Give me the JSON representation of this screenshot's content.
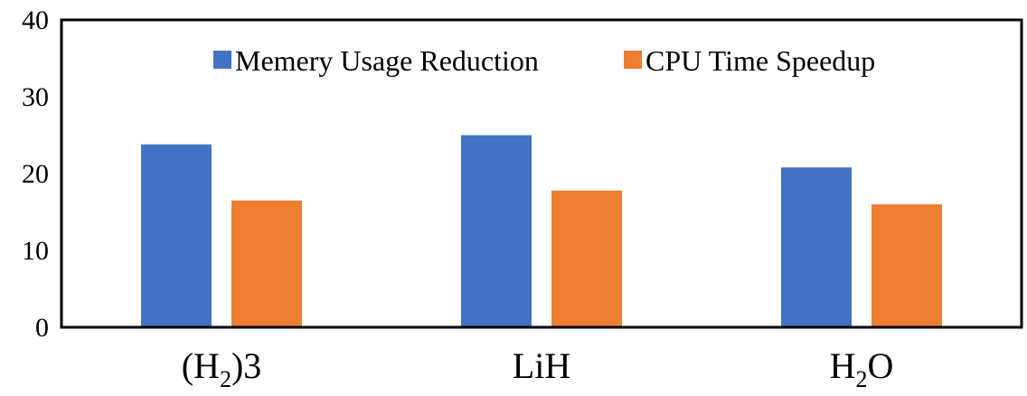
{
  "chart_data": {
    "type": "bar",
    "categories": [
      "(H2)3",
      "LiH",
      "H2O"
    ],
    "category_labels": [
      {
        "pre": "(H",
        "sub": "2",
        "post": ")3"
      },
      {
        "pre": "LiH",
        "sub": "",
        "post": ""
      },
      {
        "pre": "H",
        "sub": "2",
        "post": "O"
      }
    ],
    "series": [
      {
        "name": "Memery Usage  Reduction",
        "values": [
          23.8,
          25.0,
          20.8
        ],
        "color": "#4472C4"
      },
      {
        "name": "CPU Time Speedup",
        "values": [
          16.5,
          17.8,
          16.0
        ],
        "color": "#ED7D31"
      }
    ],
    "title": "",
    "xlabel": "",
    "ylabel": "",
    "ylim": [
      0,
      40
    ],
    "yticks": [
      "0",
      "10",
      "20",
      "30",
      "40"
    ],
    "grid": false,
    "legend": "top-center"
  }
}
